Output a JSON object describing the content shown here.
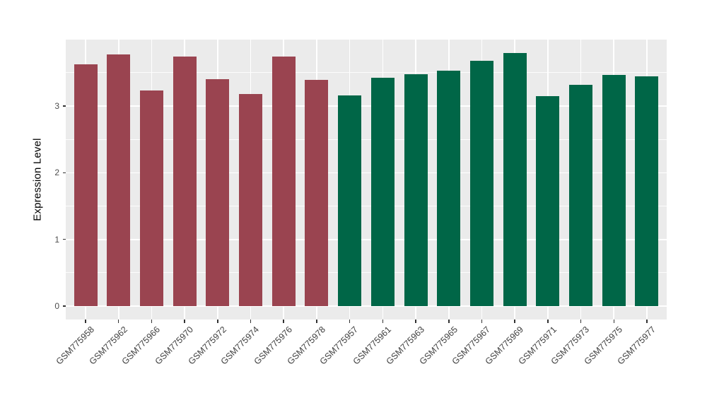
{
  "chart_data": {
    "type": "bar",
    "title": "",
    "xlabel": "",
    "ylabel": "Expression Level",
    "categories": [
      "GSM775958",
      "GSM775962",
      "GSM775966",
      "GSM775970",
      "GSM775972",
      "GSM775974",
      "GSM775976",
      "GSM775978",
      "GSM775957",
      "GSM775961",
      "GSM775963",
      "GSM775965",
      "GSM775967",
      "GSM775969",
      "GSM775971",
      "GSM775973",
      "GSM775975",
      "GSM775977"
    ],
    "values": [
      3.63,
      3.78,
      3.23,
      3.74,
      3.4,
      3.18,
      3.74,
      3.39,
      3.16,
      3.43,
      3.48,
      3.53,
      3.68,
      3.8,
      3.15,
      3.32,
      3.47,
      3.45
    ],
    "groups": [
      "A",
      "A",
      "A",
      "A",
      "A",
      "A",
      "A",
      "A",
      "B",
      "B",
      "B",
      "B",
      "B",
      "B",
      "B",
      "B",
      "B",
      "B"
    ],
    "group_colors": {
      "A": "#9A4450",
      "B": "#006647"
    },
    "ylim": [
      0,
      4.0
    ],
    "yticks": [
      0,
      1,
      2,
      3
    ],
    "y_minor_ticks": [
      0.5,
      1.5,
      2.5,
      3.5
    ],
    "x_tick_angle": 45,
    "grid": "horizontal major+minor, vertical major at category centers",
    "legend_position": "none",
    "panel_background": "#EBEBEB",
    "gridline_color": "#FFFFFF",
    "axis_text_color": "#4D4D4D",
    "axis_title_color": "#000000"
  }
}
